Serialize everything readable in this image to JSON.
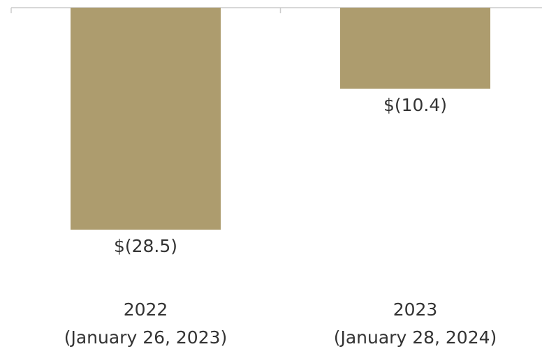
{
  "chart_data": {
    "type": "bar",
    "categories": [
      [
        "2022",
        "(January 26, 2023)"
      ],
      [
        "2023",
        "(January 28, 2024)"
      ]
    ],
    "values": [
      -28.5,
      -10.4
    ],
    "value_labels": [
      "$(28.5)",
      "$(10.4)"
    ],
    "color": "#ad9c6e",
    "ylim": [
      -40,
      0
    ]
  }
}
